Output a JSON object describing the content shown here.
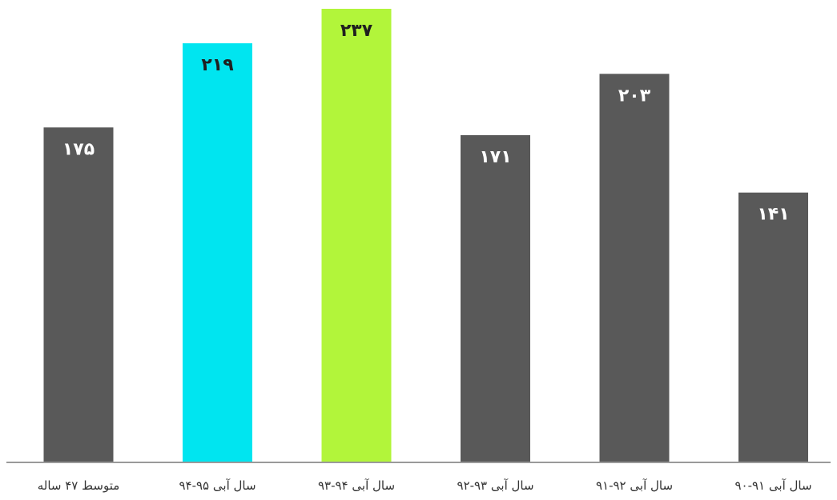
{
  "chart_data": {
    "type": "bar",
    "title": "",
    "xlabel": "",
    "ylabel": "",
    "ylim": [
      0,
      237
    ],
    "grid": false,
    "legend": "none",
    "categories": [
      "متوسط ۴۷ ساله",
      "سال آبی ۹۵-۹۴",
      "سال آبی ۹۴-۹۳",
      "سال آبی ۹۳-۹۲",
      "سال آبی ۹۲-۹۱",
      "سال آبی ۹۱-۹۰"
    ],
    "values": [
      175,
      219,
      237,
      171,
      203,
      141
    ],
    "value_labels": [
      "۱۷۵",
      "۲۱۹",
      "۲۳۷",
      "۱۷۱",
      "۲۰۳",
      "۱۴۱"
    ],
    "bar_colors": [
      "#595959",
      "#00e5f0",
      "#b2f53a",
      "#595959",
      "#595959",
      "#595959"
    ],
    "label_colors": [
      "#ffffff",
      "#1f1f1f",
      "#1f1f1f",
      "#ffffff",
      "#ffffff",
      "#ffffff"
    ],
    "axis_color": "#9a9a9a"
  }
}
